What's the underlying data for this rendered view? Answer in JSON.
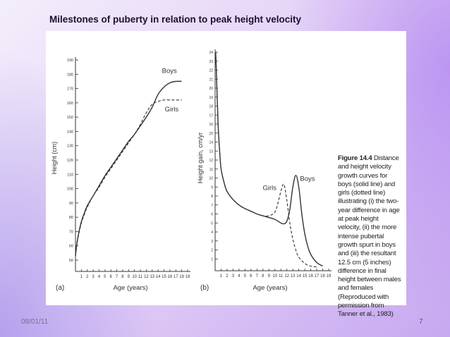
{
  "slide": {
    "title": "Milestones of puberty in relation to peak height velocity",
    "date": "08/01/11",
    "page_number": "7"
  },
  "figure": {
    "caption_title": "Figure 14.4",
    "caption_body": "Distance and height velocity growth curves for boys (solid line) and girls (dotted line) illustrating (i) the two-year difference in age at peak height velocity, (ii) the more intense pubertal growth spurt in boys and (iii) the resultant 12.5 cm (5 inches) difference in final height between males and females (Reproduced with permission from Tanner et al., 1983)",
    "line_style_colors": {
      "line": "#333333"
    }
  },
  "chart_data": [
    {
      "type": "line",
      "panel_label": "(a)",
      "xlabel": "Age (years)",
      "ylabel": "Height (cm)",
      "xlim": [
        0,
        19
      ],
      "ylim": [
        50,
        190
      ],
      "xticks": [
        1,
        2,
        3,
        4,
        5,
        6,
        7,
        8,
        9,
        10,
        11,
        12,
        13,
        14,
        15,
        16,
        17,
        18,
        19
      ],
      "yticks": [
        50,
        60,
        70,
        80,
        90,
        100,
        110,
        120,
        130,
        140,
        150,
        160,
        170,
        180,
        190
      ],
      "series": [
        {
          "name": "Boys",
          "style": "solid",
          "x": [
            0,
            0.25,
            0.5,
            1,
            1.5,
            2,
            3,
            4,
            5,
            6,
            7,
            8,
            9,
            10,
            11,
            12,
            13,
            14,
            15,
            16,
            17,
            18
          ],
          "y": [
            53,
            62,
            68,
            77,
            83,
            88,
            95,
            102,
            109,
            115,
            121,
            127,
            133,
            138,
            144,
            150,
            157,
            166,
            171,
            174,
            175,
            175
          ]
        },
        {
          "name": "Girls",
          "style": "dashed",
          "x": [
            0,
            0.25,
            0.5,
            1,
            1.5,
            2,
            3,
            4,
            5,
            6,
            7,
            8,
            9,
            10,
            11,
            12,
            13,
            14,
            15,
            16,
            17,
            18
          ],
          "y": [
            53,
            61,
            67,
            76,
            82,
            87,
            95,
            101,
            108,
            114,
            120,
            126,
            132,
            138,
            145,
            153,
            159,
            161,
            162,
            162,
            162,
            162
          ]
        }
      ]
    },
    {
      "type": "line",
      "panel_label": "(b)",
      "xlabel": "Age (years)",
      "ylabel": "Height gain, cm/yr",
      "xlim": [
        0,
        19
      ],
      "ylim": [
        0,
        24
      ],
      "xticks": [
        1,
        2,
        3,
        4,
        5,
        6,
        7,
        8,
        9,
        10,
        11,
        12,
        13,
        14,
        15,
        16,
        17,
        18,
        19
      ],
      "yticks": [
        1,
        2,
        3,
        4,
        5,
        6,
        7,
        8,
        9,
        10,
        11,
        12,
        13,
        14,
        15,
        16,
        17,
        18,
        19,
        20,
        21,
        22,
        23,
        24
      ],
      "series": [
        {
          "name": "Boys",
          "style": "solid",
          "x": [
            0.1,
            0.3,
            0.5,
            0.75,
            1,
            1.5,
            2,
            3,
            4,
            5,
            6,
            7,
            8,
            9,
            10,
            11,
            11.5,
            12,
            12.5,
            13,
            13.5,
            14,
            14.5,
            15,
            15.5,
            16,
            17,
            18
          ],
          "y": [
            24,
            20,
            16,
            13,
            11,
            9.5,
            8.5,
            7.6,
            7,
            6.6,
            6.3,
            6.0,
            5.8,
            5.6,
            5.4,
            5.0,
            4.9,
            5.2,
            6.5,
            9.0,
            10.3,
            9.0,
            6.0,
            3.8,
            2.4,
            1.5,
            0.6,
            0.2
          ]
        },
        {
          "name": "Girls",
          "style": "dashed",
          "x": [
            0.1,
            0.3,
            0.5,
            0.75,
            1,
            1.5,
            2,
            3,
            4,
            5,
            6,
            7,
            8,
            9,
            10,
            10.5,
            11,
            11.5,
            12,
            12.5,
            13,
            13.5,
            14,
            15,
            16,
            17
          ],
          "y": [
            24,
            20,
            16,
            13,
            11,
            9.5,
            8.5,
            7.6,
            7,
            6.6,
            6.3,
            6.0,
            5.8,
            5.8,
            6.2,
            7.2,
            8.5,
            9.3,
            7.5,
            5.0,
            3.2,
            2.0,
            1.2,
            0.5,
            0.2,
            0.1
          ]
        }
      ]
    }
  ]
}
